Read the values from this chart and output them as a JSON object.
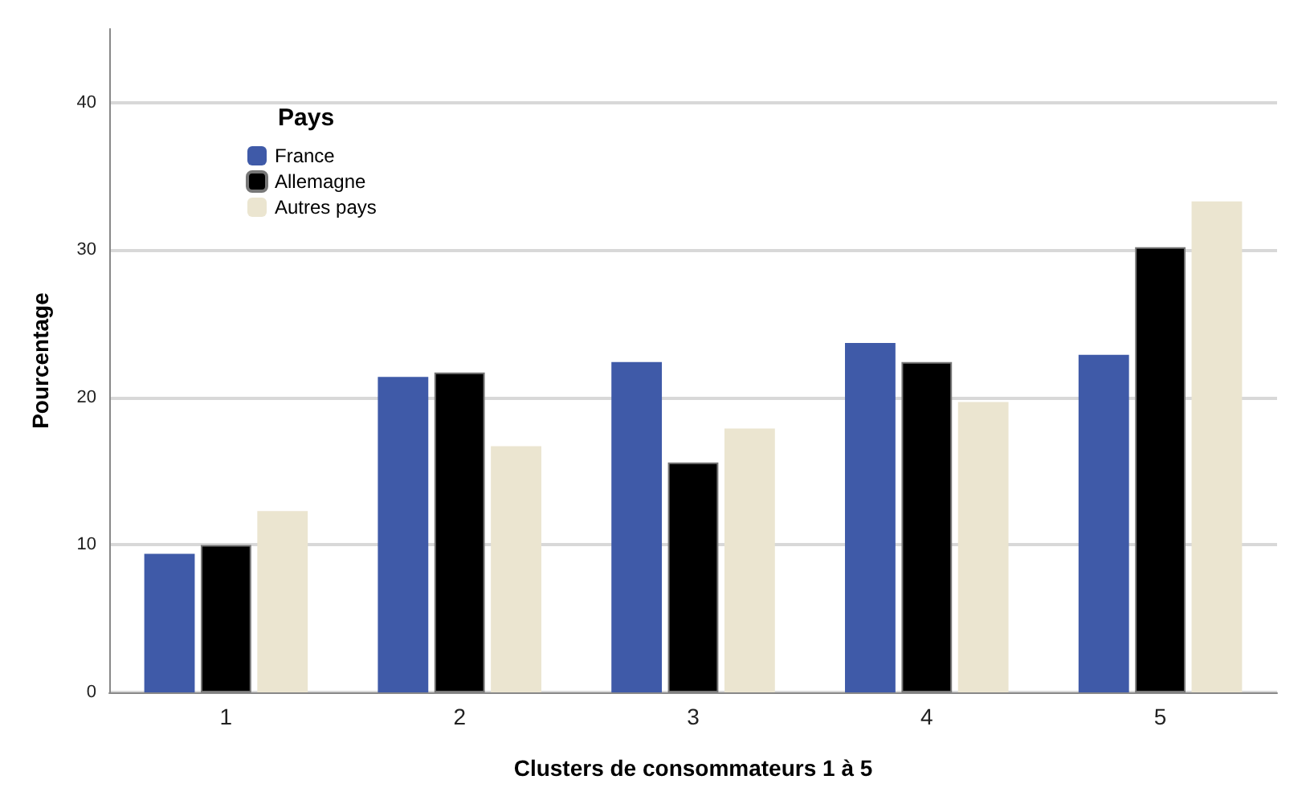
{
  "chart_data": {
    "type": "bar",
    "xlabel": "Clusters de consommateurs 1 à 5",
    "ylabel": "Pourcentage",
    "legend_title": "Pays",
    "categories": [
      "1",
      "2",
      "3",
      "4",
      "5"
    ],
    "series": [
      {
        "name": "France",
        "color": "#3f5aa8",
        "values": [
          9.4,
          21.4,
          22.4,
          23.7,
          22.9
        ]
      },
      {
        "name": "Allemagne",
        "color": "#000000",
        "values": [
          10.0,
          21.7,
          15.6,
          22.4,
          30.2
        ]
      },
      {
        "name": "Autres pays",
        "color": "#ebe5d0",
        "values": [
          12.3,
          16.7,
          17.9,
          19.7,
          33.3
        ]
      }
    ],
    "ylim": [
      0,
      45
    ],
    "yticks": [
      0,
      10,
      20,
      30,
      40
    ],
    "grid": "y",
    "legend": "top left"
  }
}
